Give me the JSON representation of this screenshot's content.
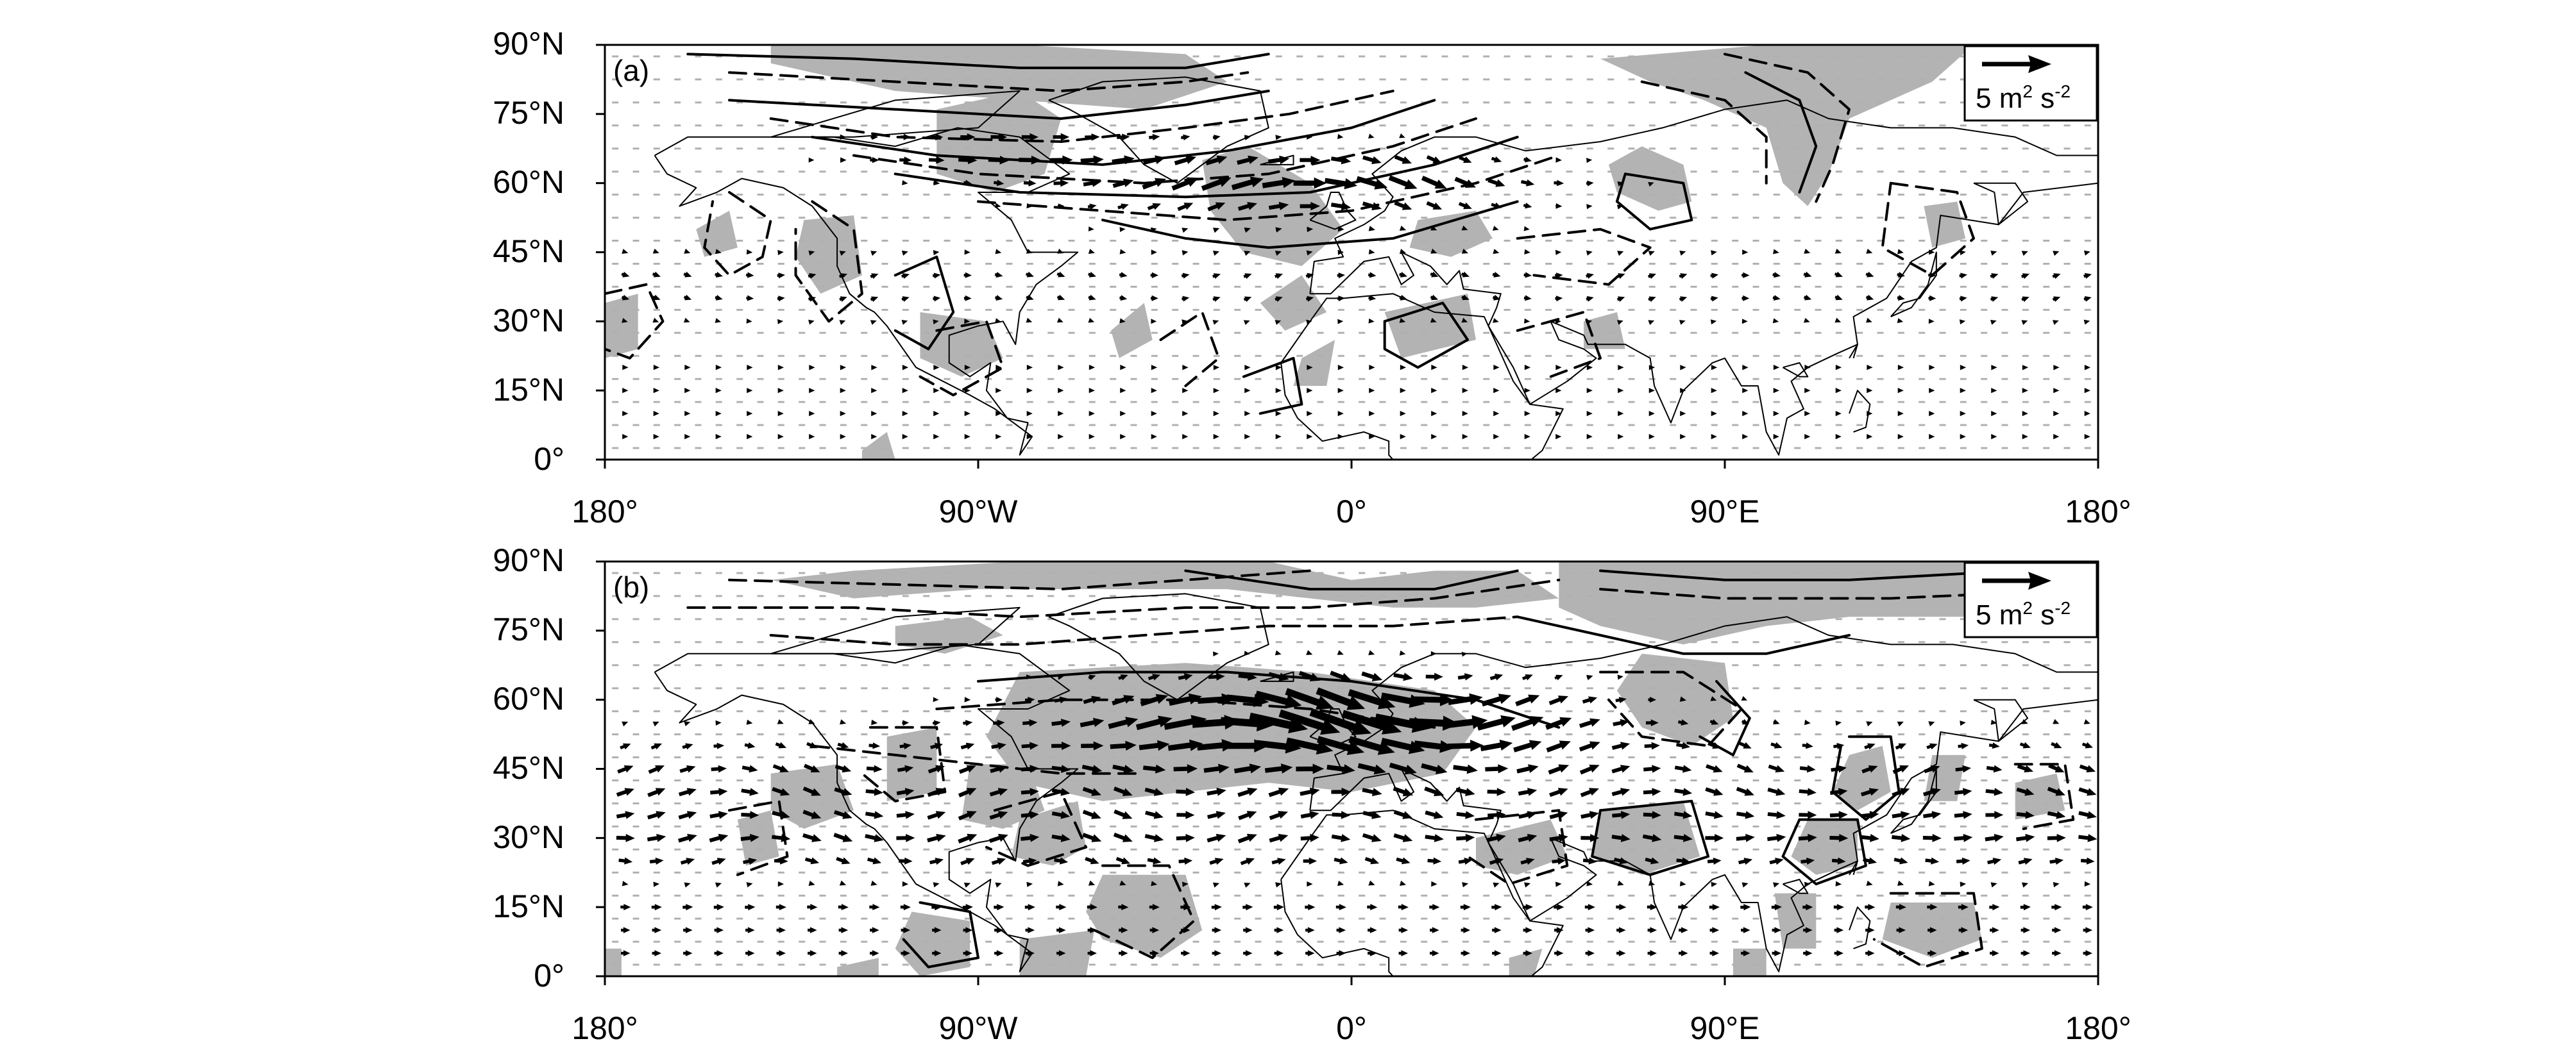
{
  "figure": {
    "panels": [
      {
        "label": "(a)",
        "legend": {
          "value": "5",
          "unit_base": "m",
          "unit_exp1": "2",
          "unit_mid": " s",
          "unit_exp2": "-2"
        }
      },
      {
        "label": "(b)",
        "legend": {
          "value": "5",
          "unit_base": "m",
          "unit_exp1": "2",
          "unit_mid": " s",
          "unit_exp2": "-2"
        }
      }
    ],
    "lat_ticks": [
      "90°N",
      "75°N",
      "60°N",
      "45°N",
      "30°N",
      "15°N",
      "0°"
    ],
    "lon_ticks": [
      "180°",
      "90°W",
      "0°",
      "90°E",
      "180°"
    ],
    "colors": {
      "shading": "#b3b3b3",
      "coast": "#000000",
      "contour": "#000000",
      "vector": "#000000",
      "frame": "#000000"
    }
  }
}
